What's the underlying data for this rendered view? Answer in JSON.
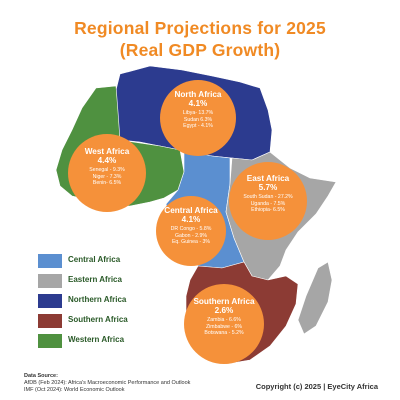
{
  "title_line1": "Regional Projections for 2025",
  "title_line2": "(Real GDP Growth)",
  "regions": {
    "north": {
      "name": "North Africa",
      "growth": "4.1%",
      "countries": [
        "Libya- 13.7%",
        "Sudan 6.3%",
        "Egypt - 4.1%"
      ],
      "color": "#2c3b8f"
    },
    "west": {
      "name": "West Africa",
      "growth": "4.4%",
      "countries": [
        "Senegal - 9.3%",
        "Niger - 7.3%",
        "Benin- 6.5%"
      ],
      "color": "#4f9140"
    },
    "east": {
      "name": "East Africa",
      "growth": "5.7%",
      "countries": [
        "South Sudan - 27.2%",
        "Uganda - 7.5%",
        "Ethiopia- 6.5%"
      ],
      "color": "#a6a6a6"
    },
    "central": {
      "name": "Central Africa",
      "growth": "4.1%",
      "countries": [
        "DR Congo - 5.8%",
        "Gabon - 2.9%",
        "Eq. Guinea - 3%"
      ],
      "color": "#5b8fd0"
    },
    "southern": {
      "name": "Southern Africa",
      "growth": "2.6%",
      "countries": [
        "Zambia - 6.6%",
        "Zimbabwe - 6%",
        "Botswana - 5.2%"
      ],
      "color": "#8c3b34"
    }
  },
  "legend": [
    {
      "label": "Central Africa",
      "color": "#5b8fd0"
    },
    {
      "label": "Eastern Africa",
      "color": "#a6a6a6"
    },
    {
      "label": "Northern Africa",
      "color": "#2c3b8f"
    },
    {
      "label": "Southern Africa",
      "color": "#8c3b34"
    },
    {
      "label": "Western Africa",
      "color": "#4f9140"
    }
  ],
  "source": {
    "heading": "Data Source:",
    "line1": "AfDB (Feb 2024): Africa's Macroeconomic Performance and Outlook",
    "line2": "IMF (Oct 2024): World Economic Outlook"
  },
  "copyright": "Copyright (c) 2025 | EyeCity Africa"
}
